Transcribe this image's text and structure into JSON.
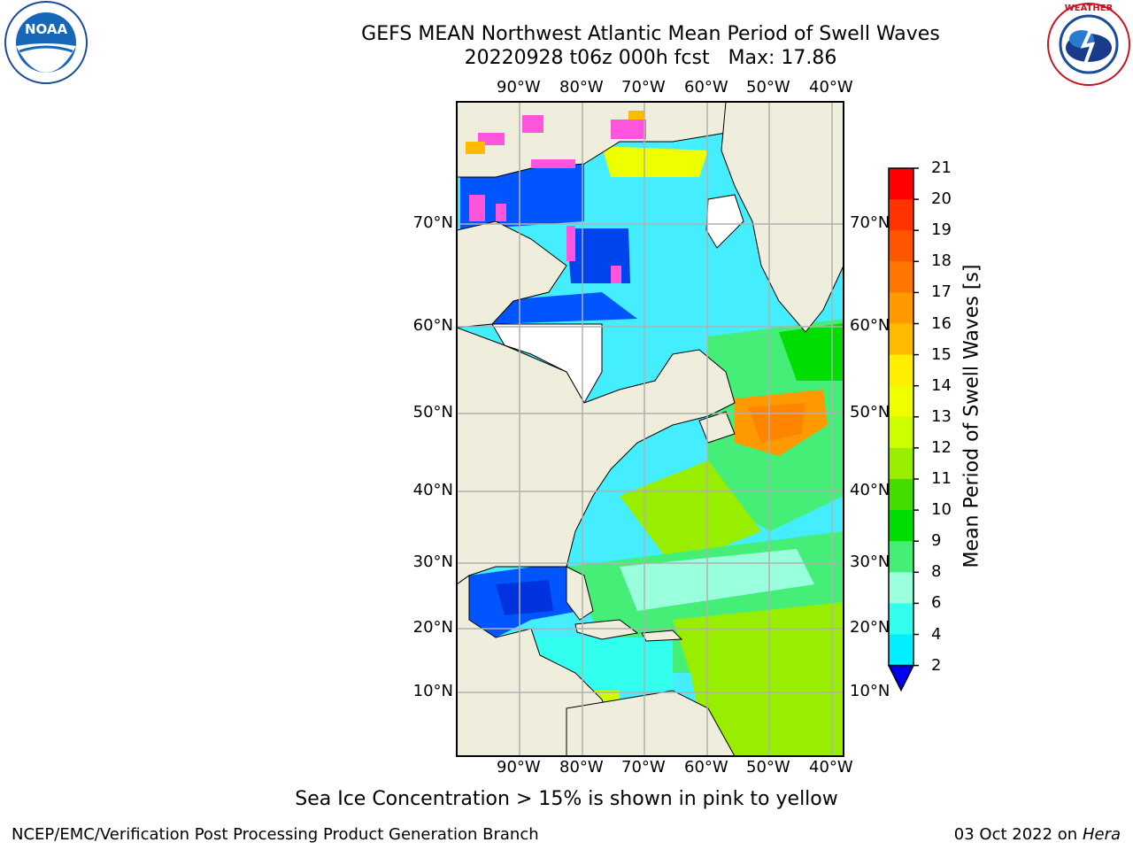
{
  "header": {
    "title_line1": "GEFS MEAN Northwest Atlantic Mean Period of Swell Waves",
    "title_line2": "20220928 t06z 000h fcst   Max: 17.86"
  },
  "logos": {
    "left": "noaa-logo",
    "right": "nws-logo"
  },
  "map": {
    "lon_labels": [
      "90°W",
      "80°W",
      "70°W",
      "60°W",
      "50°W",
      "40°W"
    ],
    "lat_labels": [
      "70°N",
      "60°N",
      "50°N",
      "40°N",
      "30°N",
      "20°N",
      "10°N"
    ],
    "land_color": "#efeedd",
    "ice_color": "#ff55dd",
    "grid_color": "#b0b0b0"
  },
  "colorbar": {
    "label": "Mean Period of Swell Waves [s]",
    "ticks": [
      "21",
      "20",
      "19",
      "18",
      "17",
      "16",
      "15",
      "14",
      "13",
      "12",
      "11",
      "10",
      "9",
      "8",
      "6",
      "4",
      "2"
    ],
    "colors": [
      "#ff0000",
      "#ff3300",
      "#ff5500",
      "#ff7700",
      "#ff9900",
      "#ffbb00",
      "#ffee00",
      "#eeff00",
      "#ccff00",
      "#99ee00",
      "#44dd00",
      "#00dd00",
      "#44ee77",
      "#99ffdd",
      "#33ffee",
      "#00eeff",
      "#0099ff",
      "#0055ff"
    ]
  },
  "footer": {
    "note": "Sea Ice Concentration > 15% is shown in pink to yellow",
    "org": "NCEP/EMC/Verification Post Processing Product Generation Branch",
    "date": "03 Oct 2022 on ",
    "host": "Hera"
  }
}
